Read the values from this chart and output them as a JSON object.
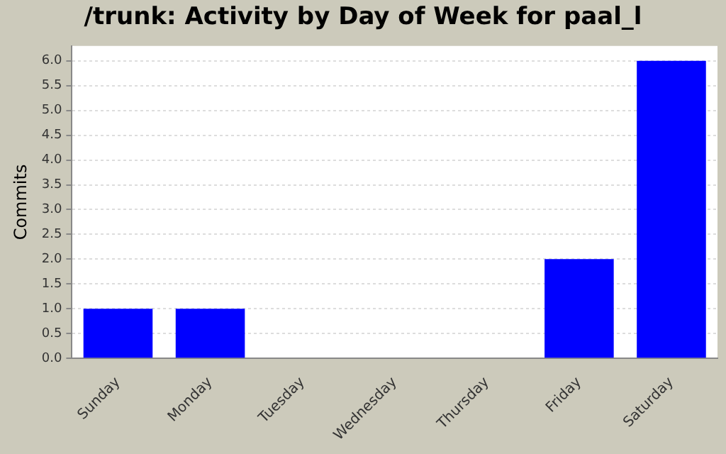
{
  "chart_data": {
    "type": "bar",
    "title": "/trunk: Activity by Day of Week for paal_l",
    "ylabel": "Commits",
    "categories": [
      "Sunday",
      "Monday",
      "Tuesday",
      "Wednesday",
      "Thursday",
      "Friday",
      "Saturday"
    ],
    "values": [
      1,
      1,
      0,
      0,
      0,
      2,
      6
    ],
    "color": "#0000ff",
    "ylim": [
      0,
      6.3
    ],
    "yticks": [
      {
        "value": 0,
        "label": "0.0"
      },
      {
        "value": 0.5,
        "label": "0.5"
      },
      {
        "value": 1,
        "label": "1.0"
      },
      {
        "value": 1.5,
        "label": "1.5"
      },
      {
        "value": 2,
        "label": "2.0"
      },
      {
        "value": 2.5,
        "label": "2.5"
      },
      {
        "value": 3,
        "label": "3.0"
      },
      {
        "value": 3.5,
        "label": "3.5"
      },
      {
        "value": 4,
        "label": "4.0"
      },
      {
        "value": 4.5,
        "label": "4.5"
      },
      {
        "value": 5,
        "label": "5.0"
      },
      {
        "value": 5.5,
        "label": "5.5"
      },
      {
        "value": 6,
        "label": "6.0"
      }
    ],
    "grid": "y"
  }
}
